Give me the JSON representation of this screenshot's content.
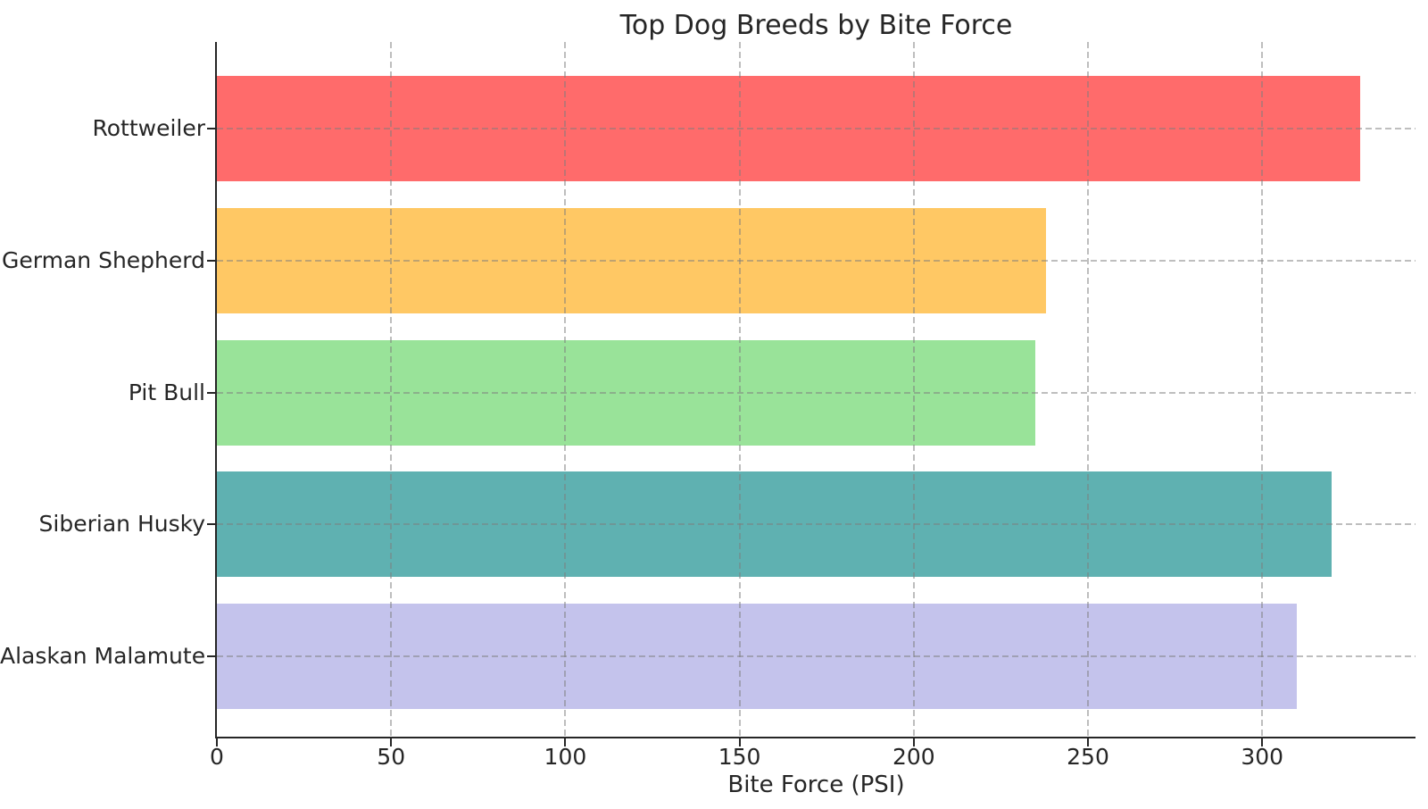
{
  "chart_data": {
    "type": "bar",
    "orientation": "horizontal",
    "title": "Top Dog Breeds by Bite Force",
    "xlabel": "Bite Force (PSI)",
    "ylabel": "",
    "categories": [
      "Rottweiler",
      "German Shepherd",
      "Pit Bull",
      "Siberian Husky",
      "Alaskan Malamute"
    ],
    "values": [
      328,
      238,
      235,
      320,
      310
    ],
    "bar_colors": [
      "#FF6B6B",
      "#FFC864",
      "#99E399",
      "#5FB1B1",
      "#C4C3EC"
    ],
    "x_ticks": [
      0,
      50,
      100,
      150,
      200,
      250,
      300
    ],
    "x_tick_labels": [
      "0",
      "50",
      "100",
      "150",
      "200",
      "250",
      "300"
    ],
    "xlim": [
      0,
      344
    ],
    "grid": "dashed gray gridlines on both axes, drawn over bars",
    "legend": "none",
    "background_color": "#FFFFFF",
    "text_color": "#262626",
    "axis_color": "#262626"
  }
}
